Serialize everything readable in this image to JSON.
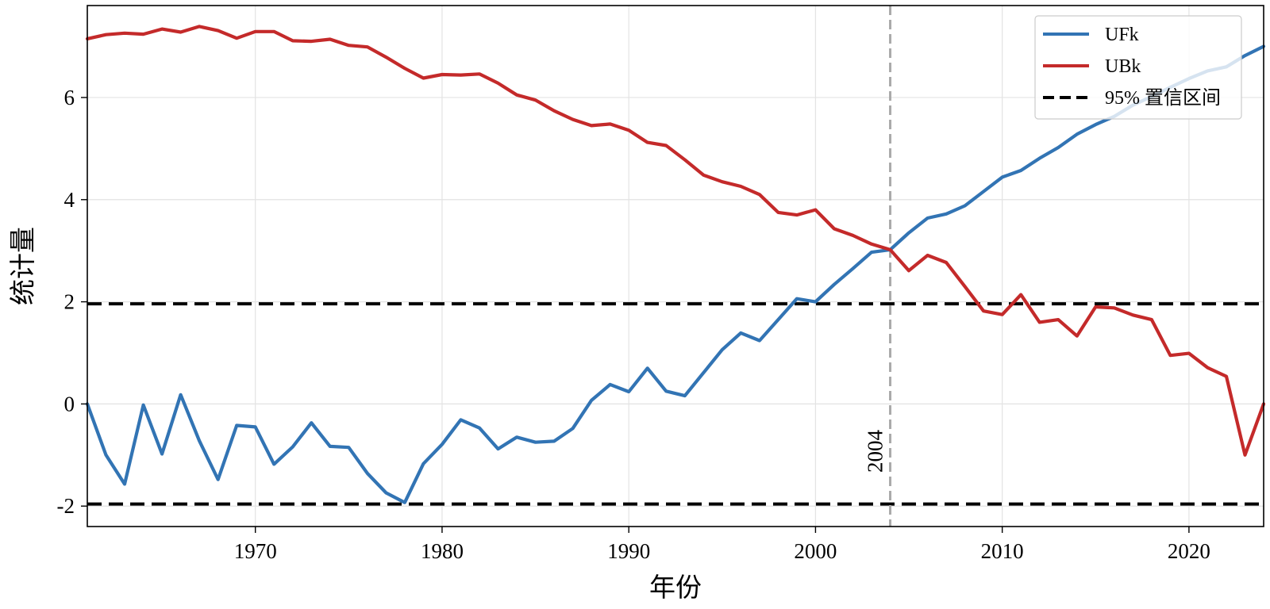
{
  "chart_data": {
    "type": "line",
    "xlabel": "年份",
    "ylabel": "统计量",
    "xlim": [
      1961,
      2024
    ],
    "ylim": [
      -2.4,
      7.8
    ],
    "xticks": [
      1970,
      1980,
      1990,
      2000,
      2010,
      2020
    ],
    "yticks": [
      -2,
      0,
      2,
      4,
      6
    ],
    "grid": true,
    "legend_position": "top-right",
    "x": [
      1961,
      1962,
      1963,
      1964,
      1965,
      1966,
      1967,
      1968,
      1969,
      1970,
      1971,
      1972,
      1973,
      1974,
      1975,
      1976,
      1977,
      1978,
      1979,
      1980,
      1981,
      1982,
      1983,
      1984,
      1985,
      1986,
      1987,
      1988,
      1989,
      1990,
      1991,
      1992,
      1993,
      1994,
      1995,
      1996,
      1997,
      1998,
      1999,
      2000,
      2001,
      2002,
      2003,
      2004,
      2005,
      2006,
      2007,
      2008,
      2009,
      2010,
      2011,
      2012,
      2013,
      2014,
      2015,
      2016,
      2017,
      2018,
      2019,
      2020,
      2021,
      2022,
      2023,
      2024
    ],
    "series": [
      {
        "name": "UFk",
        "color": "#3274b4",
        "values": [
          0,
          -1.0,
          -1.57,
          -0.02,
          -0.98,
          0.18,
          -0.72,
          -1.48,
          -0.42,
          -0.45,
          -1.18,
          -0.84,
          -0.37,
          -0.83,
          -0.85,
          -1.36,
          -1.74,
          -1.93,
          -1.17,
          -0.79,
          -0.31,
          -0.47,
          -0.88,
          -0.65,
          -0.75,
          -0.73,
          -0.48,
          0.07,
          0.38,
          0.24,
          0.7,
          0.25,
          0.16,
          0.61,
          1.06,
          1.39,
          1.24,
          1.65,
          2.06,
          2.0,
          2.34,
          2.65,
          2.97,
          3.02,
          3.35,
          3.64,
          3.72,
          3.88,
          4.16,
          4.44,
          4.57,
          4.81,
          5.02,
          5.28,
          5.47,
          5.63,
          5.85,
          6.02,
          6.2,
          6.37,
          6.52,
          6.6,
          6.82,
          7.0
        ]
      },
      {
        "name": "UBk",
        "color": "#c42a2a",
        "values": [
          7.15,
          7.23,
          7.26,
          7.24,
          7.34,
          7.28,
          7.39,
          7.31,
          7.16,
          7.29,
          7.29,
          7.11,
          7.1,
          7.14,
          7.02,
          6.99,
          6.79,
          6.57,
          6.38,
          6.45,
          6.44,
          6.46,
          6.28,
          6.05,
          5.95,
          5.74,
          5.57,
          5.45,
          5.48,
          5.36,
          5.12,
          5.06,
          4.78,
          4.48,
          4.35,
          4.26,
          4.1,
          3.75,
          3.7,
          3.8,
          3.43,
          3.3,
          3.13,
          3.02,
          2.61,
          2.91,
          2.77,
          2.3,
          1.82,
          1.75,
          2.14,
          1.6,
          1.65,
          1.33,
          1.9,
          1.88,
          1.74,
          1.65,
          0.95,
          0.99,
          0.71,
          0.54,
          -1.0,
          0.0
        ]
      }
    ],
    "reference_lines": [
      {
        "type": "horizontal",
        "y": 1.96,
        "style": "dashed",
        "color": "#000000",
        "legend": "95% 置信区间"
      },
      {
        "type": "horizontal",
        "y": -1.96,
        "style": "dashed",
        "color": "#000000"
      },
      {
        "type": "vertical",
        "x": 2004,
        "style": "dashed",
        "color": "#aaaaaa",
        "label": "2004"
      }
    ],
    "legend": [
      "UFk",
      "UBk",
      "95% 置信区间"
    ]
  }
}
